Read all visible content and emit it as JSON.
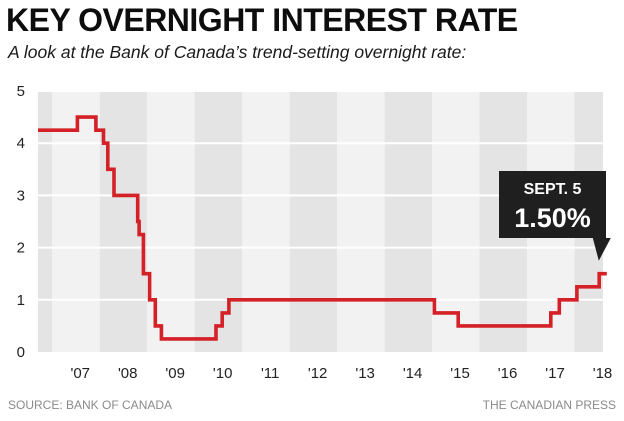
{
  "header": {
    "title": "KEY OVERNIGHT INTEREST RATE",
    "subtitle": "A look at the Bank of Canada’s trend-setting overnight rate:"
  },
  "footer": {
    "source": "SOURCE: BANK OF CANADA",
    "credit": "THE CANADIAN PRESS"
  },
  "colors": {
    "line": "#d42027",
    "band_dark": "#e4e4e4",
    "band_light": "#f2f2f2",
    "grid": "#ffffff",
    "callout_bg": "#1f1f1f"
  },
  "chart_data": {
    "type": "line",
    "title": "KEY OVERNIGHT INTEREST RATE",
    "subtitle": "A look at the Bank of Canada’s trend-setting overnight rate:",
    "xlabel": "",
    "ylabel": "",
    "xlim": [
      2006.7,
      2018.6
    ],
    "ylim": [
      0,
      5
    ],
    "yticks": [
      "0",
      "1",
      "2",
      "3",
      "4",
      "5"
    ],
    "xticks": [
      {
        "label": "'07",
        "x": 2007.0
      },
      {
        "label": "'08",
        "x": 2008.0
      },
      {
        "label": "'09",
        "x": 2009.0
      },
      {
        "label": "'10",
        "x": 2010.0
      },
      {
        "label": "'11",
        "x": 2011.0
      },
      {
        "label": "'12",
        "x": 2012.0
      },
      {
        "label": "'13",
        "x": 2013.0
      },
      {
        "label": "'14",
        "x": 2014.0
      },
      {
        "label": "'15",
        "x": 2015.0
      },
      {
        "label": "'16",
        "x": 2016.0
      },
      {
        "label": "'17",
        "x": 2017.0
      },
      {
        "label": "'18",
        "x": 2018.0
      }
    ],
    "series": [
      {
        "name": "Overnight rate",
        "step": true,
        "points": [
          [
            2006.7,
            4.25
          ],
          [
            2007.53,
            4.5
          ],
          [
            2007.92,
            4.25
          ],
          [
            2008.08,
            4.0
          ],
          [
            2008.17,
            3.5
          ],
          [
            2008.3,
            3.0
          ],
          [
            2008.8,
            2.5
          ],
          [
            2008.83,
            2.25
          ],
          [
            2008.92,
            1.5
          ],
          [
            2009.05,
            1.0
          ],
          [
            2009.17,
            0.5
          ],
          [
            2009.3,
            0.25
          ],
          [
            2010.45,
            0.5
          ],
          [
            2010.58,
            0.75
          ],
          [
            2010.72,
            1.0
          ],
          [
            2015.05,
            0.75
          ],
          [
            2015.55,
            0.5
          ],
          [
            2017.5,
            0.75
          ],
          [
            2017.68,
            1.0
          ],
          [
            2018.05,
            1.25
          ],
          [
            2018.52,
            1.5
          ],
          [
            2018.68,
            1.5
          ]
        ]
      }
    ],
    "annotation": {
      "label": "SEPT. 5",
      "value": "1.50%",
      "x": 2018.68,
      "y": 1.5
    }
  }
}
